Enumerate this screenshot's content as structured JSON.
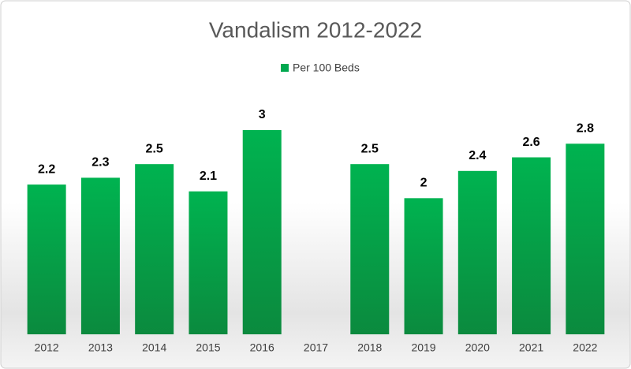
{
  "chart_data": {
    "type": "bar",
    "title": "Vandalism 2012-2022",
    "categories": [
      "2012",
      "2013",
      "2014",
      "2015",
      "2016",
      "2017",
      "2018",
      "2019",
      "2020",
      "2021",
      "2022"
    ],
    "series": [
      {
        "name": "Per 100 Beds",
        "color": "#00a84f",
        "values": [
          2.2,
          2.3,
          2.5,
          2.1,
          3,
          null,
          2.5,
          2,
          2.4,
          2.6,
          2.8
        ]
      }
    ],
    "legend": "top",
    "data_labels": true
  }
}
